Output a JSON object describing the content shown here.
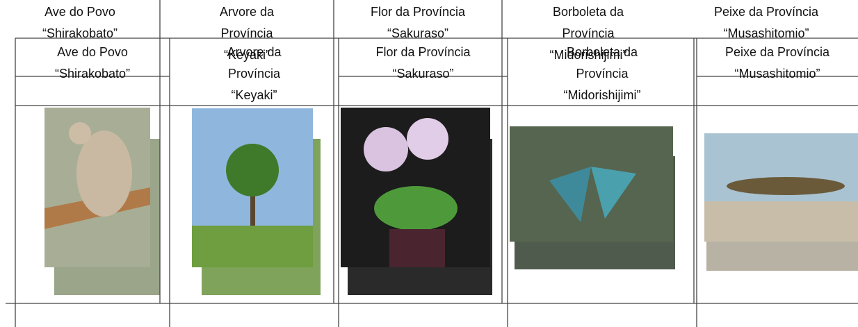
{
  "headers": [
    "Ave do Povo\n“Shirakobato”",
    "Arvore da\nProvíncia\n“Keyaki”",
    "Flor da Província\n“Sakuraso”",
    "Borboleta da\nProvíncia\n“Midorishijimi”",
    "Peixe da Província\n“Musashitomio”"
  ]
}
